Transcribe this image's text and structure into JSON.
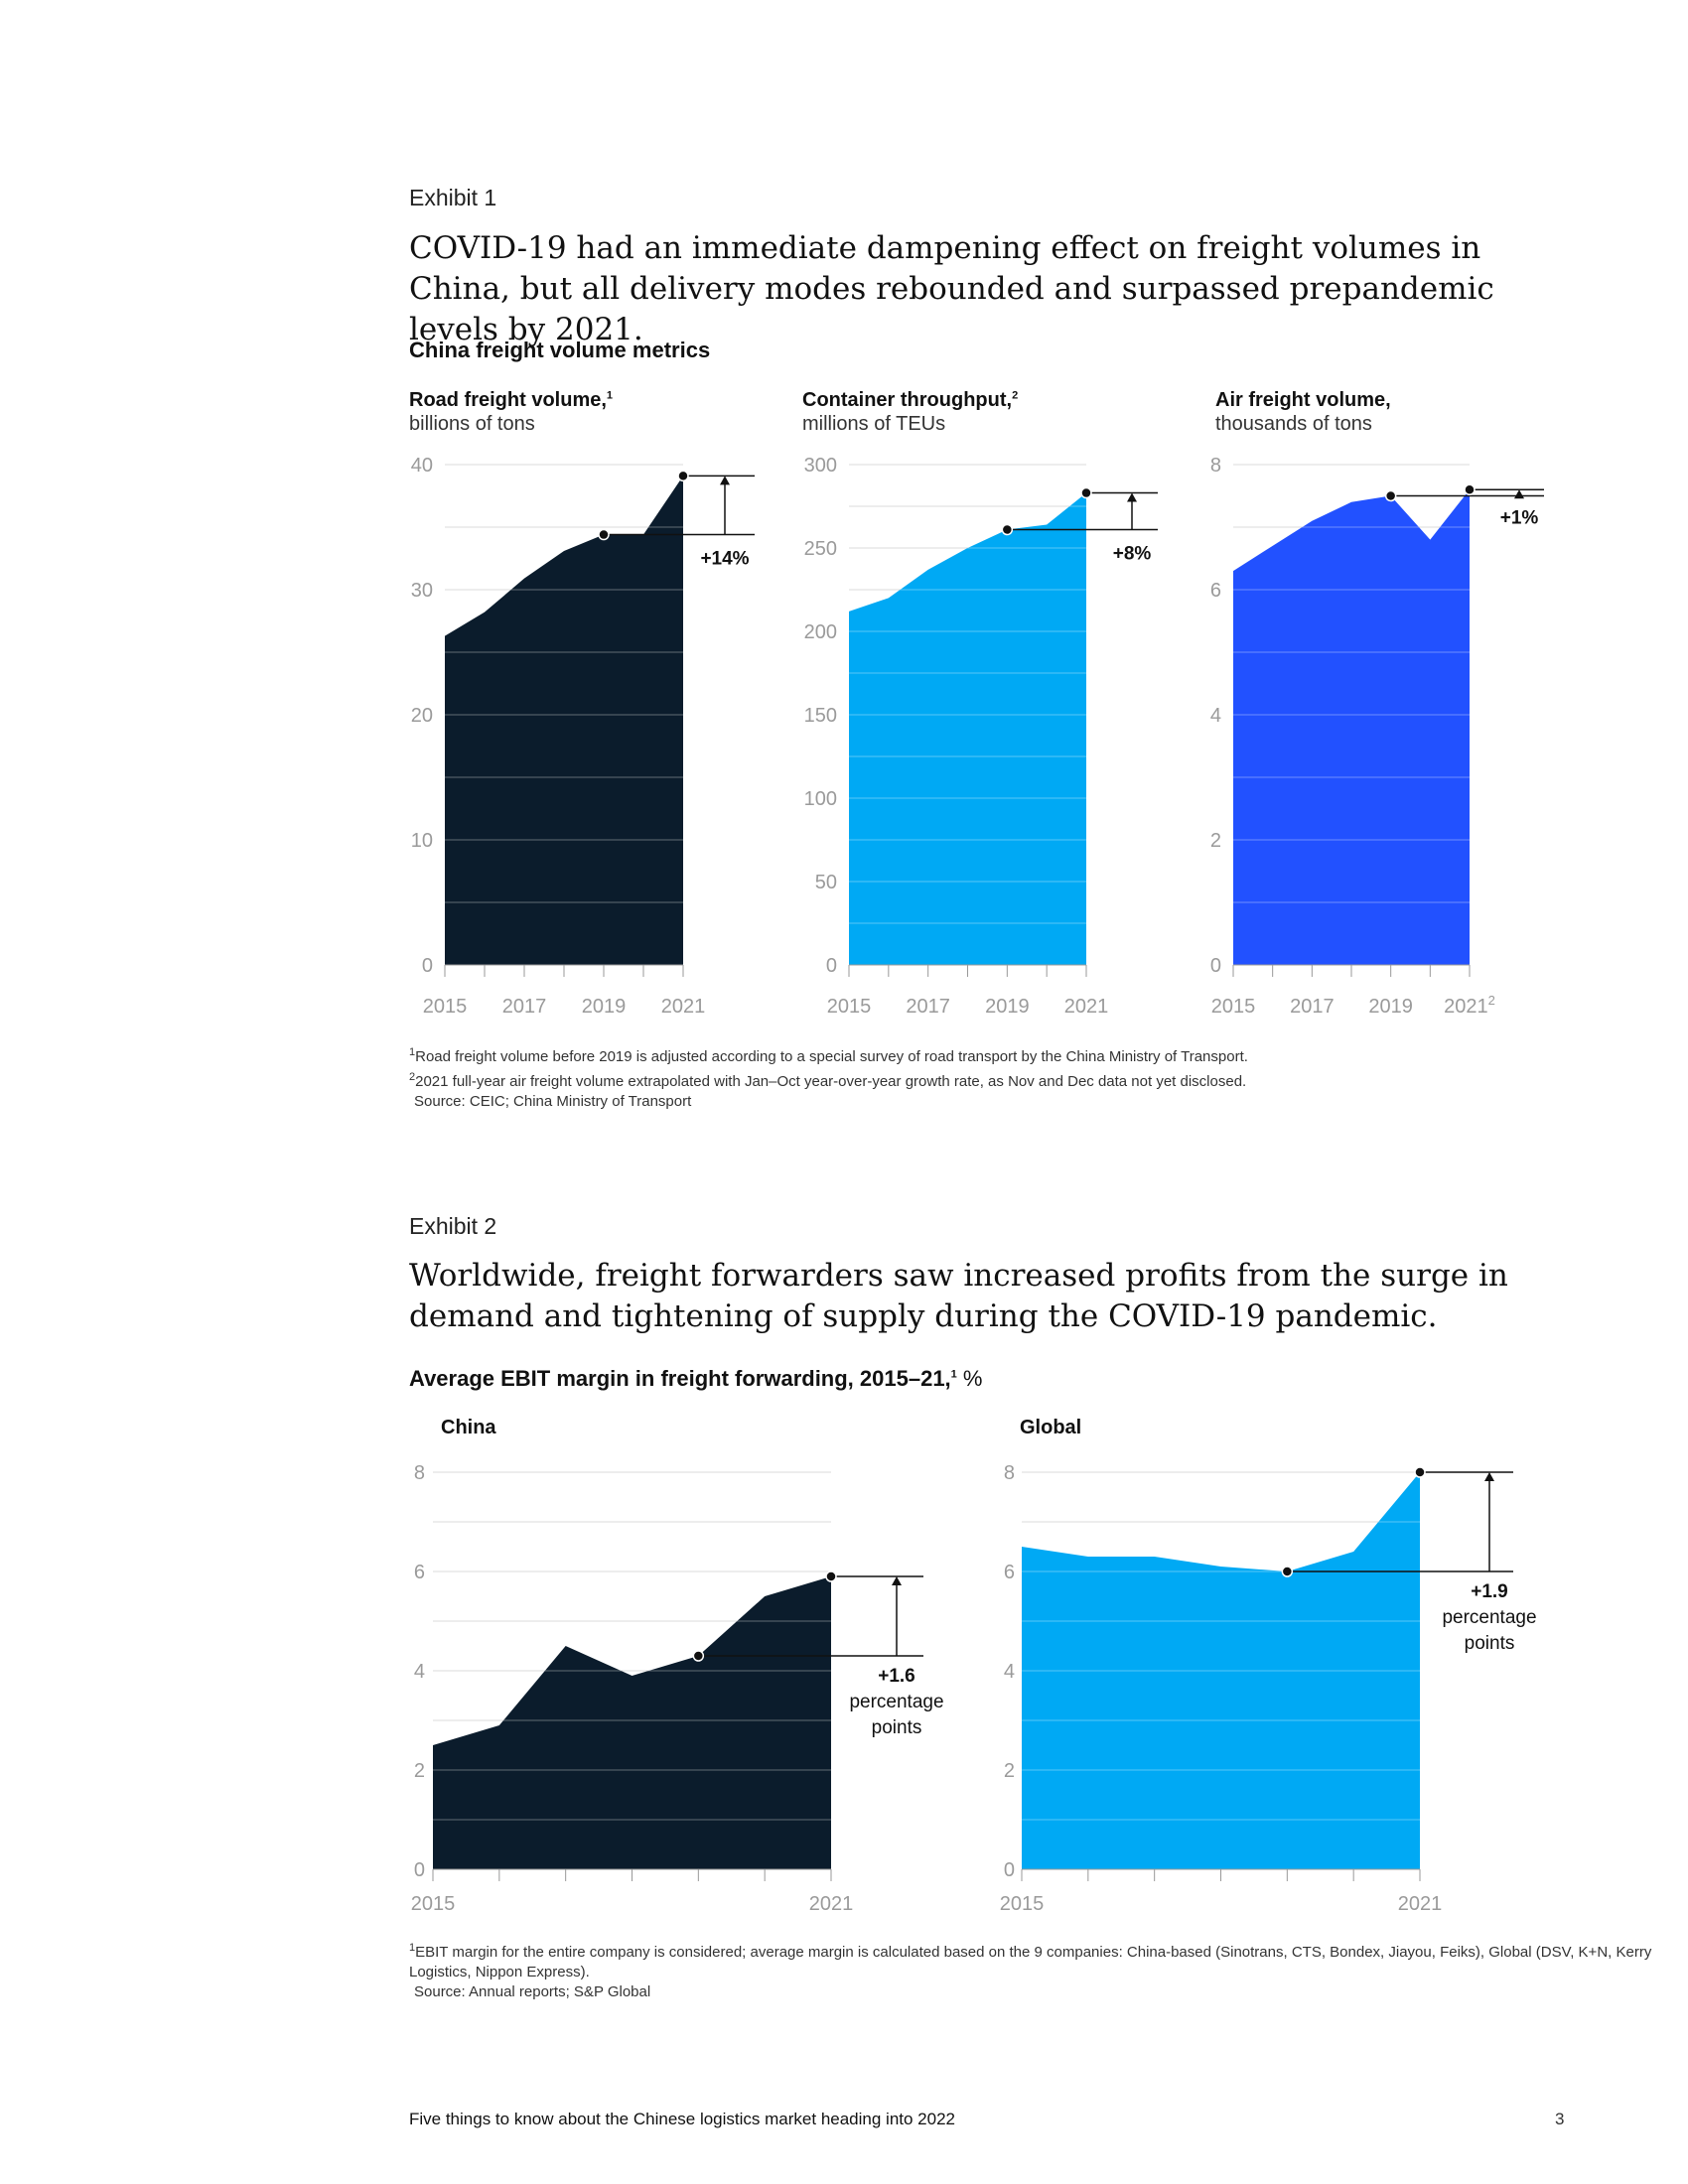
{
  "exhibit1": {
    "label": "Exhibit 1",
    "title": "COVID-19 had an immediate dampening effect on freight volumes in China, but all delivery modes rebounded and surpassed prepandemic levels by 2021.",
    "subtitle": "China freight volume metrics",
    "notes": [
      "Road freight volume before 2019 is adjusted according to a special survey of road transport by the China Ministry of Transport.",
      "2021 full-year air freight volume extrapolated with Jan–Oct year-over-year growth rate, as Nov and Dec data not yet disclosed.",
      "Source: CEIC; China Ministry of Transport"
    ]
  },
  "exhibit2": {
    "label": "Exhibit 2",
    "title": "Worldwide, freight forwarders saw increased profits from the surge in demand and tightening of supply during the COVID-19 pandemic.",
    "subtitle": "Average EBIT margin in freight forwarding, 2015–21,",
    "subtitle_unit": "%",
    "notes": [
      "EBIT margin for the entire company is considered; average margin is calculated based on the 9 companies: China-based (Sinotrans, CTS, Bondex, Jiayou, Feiks), Global (DSV, K+N, Kerry Logistics, Nippon Express).",
      "Source: Annual reports; S&P Global"
    ]
  },
  "footer": {
    "text": "Five things to know about the Chinese logistics market heading into 2022",
    "page": "3"
  },
  "chart_data": [
    {
      "type": "area",
      "title": "Road freight volume,",
      "title_sup": "1",
      "ylabel": "billions of tons",
      "x": [
        2015,
        2016,
        2017,
        2018,
        2019,
        2020,
        2021
      ],
      "values": [
        26.3,
        28.2,
        30.9,
        33.1,
        34.4,
        34.4,
        39.1
      ],
      "ylim": [
        0,
        40
      ],
      "yticks": [
        0,
        10,
        20,
        30,
        40
      ],
      "xtick_labels": [
        "2015",
        "2017",
        "2019",
        "2021"
      ],
      "callout": {
        "from": 2019,
        "to": 2021,
        "label": "+14%"
      },
      "color": "#0b1c2c"
    },
    {
      "type": "area",
      "title": "Container throughput,",
      "title_sup": "2",
      "ylabel": "millions of TEUs",
      "x": [
        2015,
        2016,
        2017,
        2018,
        2019,
        2020,
        2021
      ],
      "values": [
        212,
        220,
        237,
        250,
        261,
        264,
        283
      ],
      "ylim": [
        0,
        300
      ],
      "yticks": [
        0,
        50,
        100,
        150,
        200,
        250,
        300
      ],
      "xtick_labels": [
        "2015",
        "2017",
        "2019",
        "2021"
      ],
      "callout": {
        "from": 2019,
        "to": 2021,
        "label": "+8%"
      },
      "color": "#00a9f4"
    },
    {
      "type": "area",
      "title": "Air freight volume,",
      "title_sup": "",
      "ylabel": "thousands of tons",
      "x": [
        2015,
        2016,
        2017,
        2018,
        2019,
        2020,
        2021
      ],
      "values": [
        6.3,
        6.7,
        7.1,
        7.4,
        7.5,
        6.8,
        7.6
      ],
      "ylim": [
        0,
        8
      ],
      "yticks": [
        0,
        2,
        4,
        6,
        8
      ],
      "xtick_labels": [
        "2015",
        "2017",
        "2019",
        "2021"
      ],
      "last_tick_sup": "2",
      "callout": {
        "from": 2019,
        "to": 2021,
        "label": "+1%"
      },
      "color": "#2251ff"
    },
    {
      "type": "area",
      "title": "China",
      "x": [
        2015,
        2016,
        2017,
        2018,
        2019,
        2020,
        2021
      ],
      "values": [
        2.5,
        2.9,
        4.5,
        3.9,
        4.3,
        5.5,
        5.9
      ],
      "ylim": [
        0,
        8
      ],
      "yticks": [
        0,
        2,
        4,
        6,
        8
      ],
      "xtick_labels": [
        "2015",
        "2021"
      ],
      "callout": {
        "from": 2019,
        "to": 2021,
        "label": "+1.6",
        "label2": "percentage",
        "label3": "points"
      },
      "color": "#0b1c2c"
    },
    {
      "type": "area",
      "title": "Global",
      "x": [
        2015,
        2016,
        2017,
        2018,
        2019,
        2020,
        2021
      ],
      "values": [
        6.5,
        6.3,
        6.3,
        6.1,
        6.0,
        6.4,
        8.0
      ],
      "ylim": [
        0,
        8
      ],
      "yticks": [
        0,
        2,
        4,
        6,
        8
      ],
      "xtick_labels": [
        "2015",
        "2021"
      ],
      "callout": {
        "from": 2019,
        "to": 2021,
        "label": "+1.9",
        "label2": "percentage",
        "label3": "points"
      },
      "color": "#00a9f4"
    }
  ]
}
